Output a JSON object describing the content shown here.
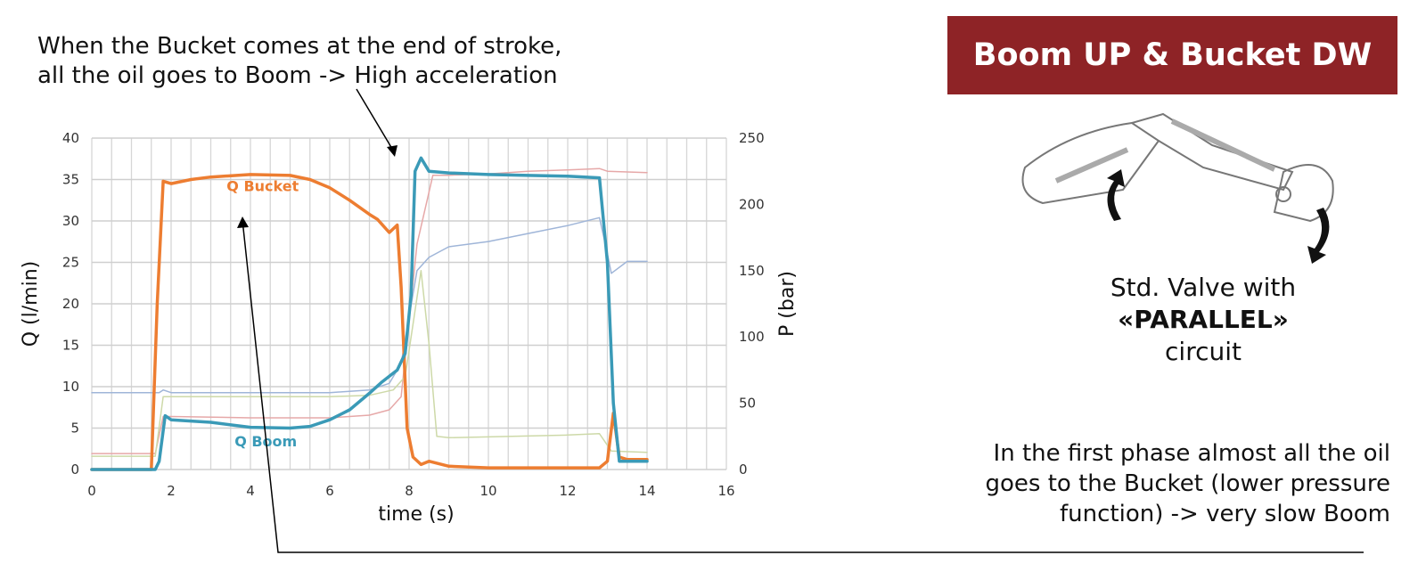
{
  "title": "Boom UP & Bucket DW",
  "annotation_top": "When the Bucket comes at the end of stroke,\nall the oil goes to Boom -> High acceleration",
  "valve_text": {
    "line1": "Std. Valve with",
    "line2": "«PARALLEL»",
    "line3": "circuit"
  },
  "annotation_bottom": "In the first phase almost all the oil\ngoes to the Bucket (lower pressure\nfunction) -> very slow Boom",
  "colors": {
    "title_bg": "#8e2326",
    "bucket": "#ed7d31",
    "boom": "#3a9ab7"
  },
  "chart_data": {
    "type": "line",
    "xlabel": "time (s)",
    "ylabel": "Q (l/min)",
    "y2label": "P (bar)",
    "xlim": [
      0,
      16
    ],
    "ylim": [
      0,
      40
    ],
    "y2lim": [
      0,
      250
    ],
    "xticks": [
      0,
      2,
      4,
      6,
      8,
      10,
      12,
      14,
      16
    ],
    "yticks": [
      0,
      5,
      10,
      15,
      20,
      25,
      30,
      35,
      40
    ],
    "y2ticks": [
      0,
      50,
      100,
      150,
      200,
      250
    ],
    "grid": true,
    "labels": {
      "bucket": "Q Bucket",
      "boom": "Q Boom"
    },
    "series": [
      {
        "name": "Q Bucket",
        "axis": "left",
        "color": "#ed7d31",
        "width": 3.5,
        "x": [
          0,
          1.5,
          1.65,
          1.8,
          2,
          2.5,
          3,
          4,
          5,
          5.5,
          6,
          6.5,
          7,
          7.2,
          7.5,
          7.7,
          7.8,
          7.95,
          8.1,
          8.3,
          8.5,
          9,
          10,
          11,
          12,
          12.8,
          13.0,
          13.15,
          13.3,
          13.5,
          14
        ],
        "y": [
          0,
          0,
          20,
          34.8,
          34.5,
          35,
          35.3,
          35.6,
          35.5,
          35,
          34,
          32.5,
          30.8,
          30.2,
          28.6,
          29.5,
          22,
          5,
          1.5,
          0.6,
          1,
          0.4,
          0.2,
          0.2,
          0.2,
          0.2,
          1,
          6.8,
          1.5,
          1.2,
          1.2
        ]
      },
      {
        "name": "Q Boom",
        "axis": "left",
        "color": "#3a9ab7",
        "width": 3.5,
        "x": [
          0,
          1.5,
          1.6,
          1.7,
          1.85,
          2,
          3,
          4,
          5,
          5.5,
          6,
          6.5,
          7,
          7.3,
          7.7,
          7.9,
          8.05,
          8.15,
          8.3,
          8.5,
          9,
          10,
          11,
          12,
          12.8,
          13.0,
          13.15,
          13.3,
          14
        ],
        "y": [
          0,
          0,
          0,
          1,
          6.5,
          6,
          5.7,
          5.1,
          5,
          5.2,
          6,
          7.2,
          9.2,
          10.5,
          12,
          14,
          21,
          36,
          37.6,
          36,
          35.8,
          35.6,
          35.5,
          35.4,
          35.2,
          25,
          8,
          1,
          1
        ]
      },
      {
        "name": "",
        "axis": "right",
        "color": "#9fb5d8",
        "width": 1.5,
        "x": [
          0,
          1.7,
          1.8,
          2,
          4,
          6,
          7,
          7.5,
          7.8,
          8.2,
          8.5,
          9,
          10,
          11,
          12,
          12.8,
          13.0,
          13.1,
          13.5,
          14
        ],
        "y": [
          58,
          58,
          60,
          58,
          58,
          58,
          60,
          65,
          80,
          150,
          160,
          168,
          172,
          178,
          184,
          190,
          163,
          148,
          157,
          157
        ]
      },
      {
        "name": "",
        "axis": "right",
        "color": "#e6a8a8",
        "width": 1.5,
        "x": [
          0,
          1.6,
          1.8,
          2,
          4,
          6,
          7,
          7.5,
          7.8,
          8.2,
          8.6,
          9,
          10,
          11,
          12,
          12.8,
          13.0,
          14
        ],
        "y": [
          12,
          12,
          40,
          40,
          39,
          39,
          41,
          45,
          55,
          170,
          222,
          222,
          223,
          225,
          226,
          227,
          225,
          224
        ]
      },
      {
        "name": "",
        "axis": "right",
        "color": "#cdd9a8",
        "width": 1.5,
        "x": [
          0,
          1.6,
          1.8,
          2,
          4,
          6,
          7,
          7.6,
          7.9,
          8.3,
          8.5,
          8.7,
          9,
          12,
          12.8,
          13.1,
          14
        ],
        "y": [
          10,
          10,
          55,
          55,
          55,
          55,
          56,
          60,
          70,
          150,
          95,
          25,
          24,
          26,
          27,
          14,
          13
        ]
      }
    ]
  }
}
